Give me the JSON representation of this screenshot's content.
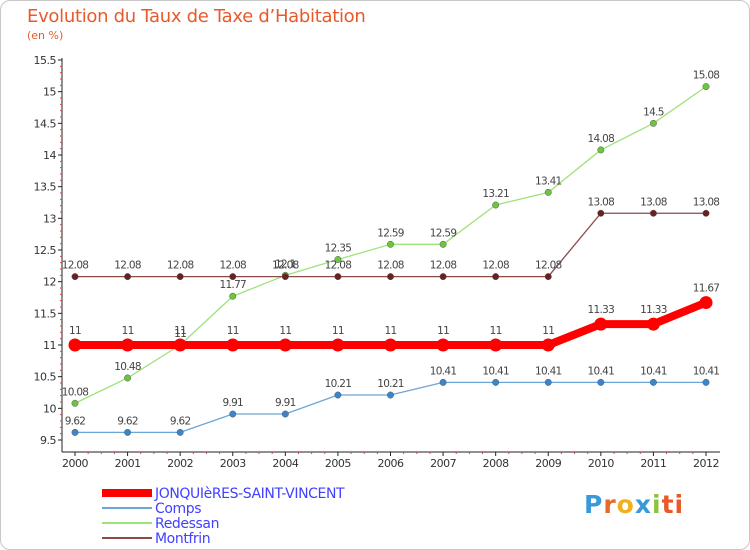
{
  "chart_data": {
    "type": "line",
    "title": "Evolution du Taux de Taxe d’Habitation",
    "subtitle": "(en %)",
    "xlabel": "",
    "ylabel": "",
    "x": [
      "2000",
      "2001",
      "2002",
      "2003",
      "2004",
      "2005",
      "2006",
      "2007",
      "2008",
      "2009",
      "2010",
      "2011",
      "2012"
    ],
    "ylim": [
      9.5,
      15.5
    ],
    "yticks": [
      "9.5",
      "10",
      "10.5",
      "11",
      "11.5",
      "12",
      "12.5",
      "13",
      "13.5",
      "14",
      "14.5",
      "15",
      "15.5"
    ],
    "grid": false,
    "legend_position": "bottom-left",
    "series": [
      {
        "name": "JONQUIèRES-SAINT-VINCENT",
        "color": "#ff0000",
        "point_color": "#ff0000",
        "width": 8,
        "values": [
          11,
          11,
          11,
          11,
          11,
          11,
          11,
          11,
          11,
          11,
          11.33,
          11.33,
          11.67
        ],
        "labels": [
          "11",
          "11",
          "11",
          "11",
          "11",
          "11",
          "11",
          "11",
          "11",
          "11",
          "11.33",
          "11.33",
          "11.67"
        ]
      },
      {
        "name": "Comps",
        "color": "#6ca6d6",
        "point_color": "#3a86c8",
        "width": 1.3,
        "values": [
          9.62,
          9.62,
          9.62,
          9.91,
          9.91,
          10.21,
          10.21,
          10.41,
          10.41,
          10.41,
          10.41,
          10.41,
          10.41
        ],
        "labels": [
          "9.62",
          "9.62",
          "9.62",
          "9.91",
          "9.91",
          "10.21",
          "10.21",
          "10.41",
          "10.41",
          "10.41",
          "10.41",
          "10.41",
          "10.41"
        ]
      },
      {
        "name": "Redessan",
        "color": "#9ee27a",
        "point_color": "#6cc63c",
        "width": 1.3,
        "values": [
          10.08,
          10.48,
          11,
          11.77,
          12.1,
          12.35,
          12.59,
          12.59,
          13.21,
          13.41,
          14.08,
          14.5,
          15.08
        ],
        "labels": [
          "10.08",
          "10.48",
          "11",
          "11.77",
          "12.1",
          "12.35",
          "12.59",
          "12.59",
          "13.21",
          "13.41",
          "14.08",
          "14.5",
          "15.08"
        ]
      },
      {
        "name": "Montfrin",
        "color": "#8a4a4a",
        "point_color": "#6a2020",
        "width": 1.3,
        "values": [
          12.08,
          12.08,
          12.08,
          12.08,
          12.08,
          12.08,
          12.08,
          12.08,
          12.08,
          12.08,
          13.08,
          13.08,
          13.08
        ],
        "labels": [
          "12.08",
          "12.08",
          "12.08",
          "12.08",
          "12.08",
          "12.08",
          "12.08",
          "12.08",
          "12.08",
          "12.08",
          "13.08",
          "13.08",
          "13.08"
        ]
      }
    ]
  },
  "logo": [
    "P",
    "r",
    "o",
    "x",
    "i",
    "ti"
  ]
}
